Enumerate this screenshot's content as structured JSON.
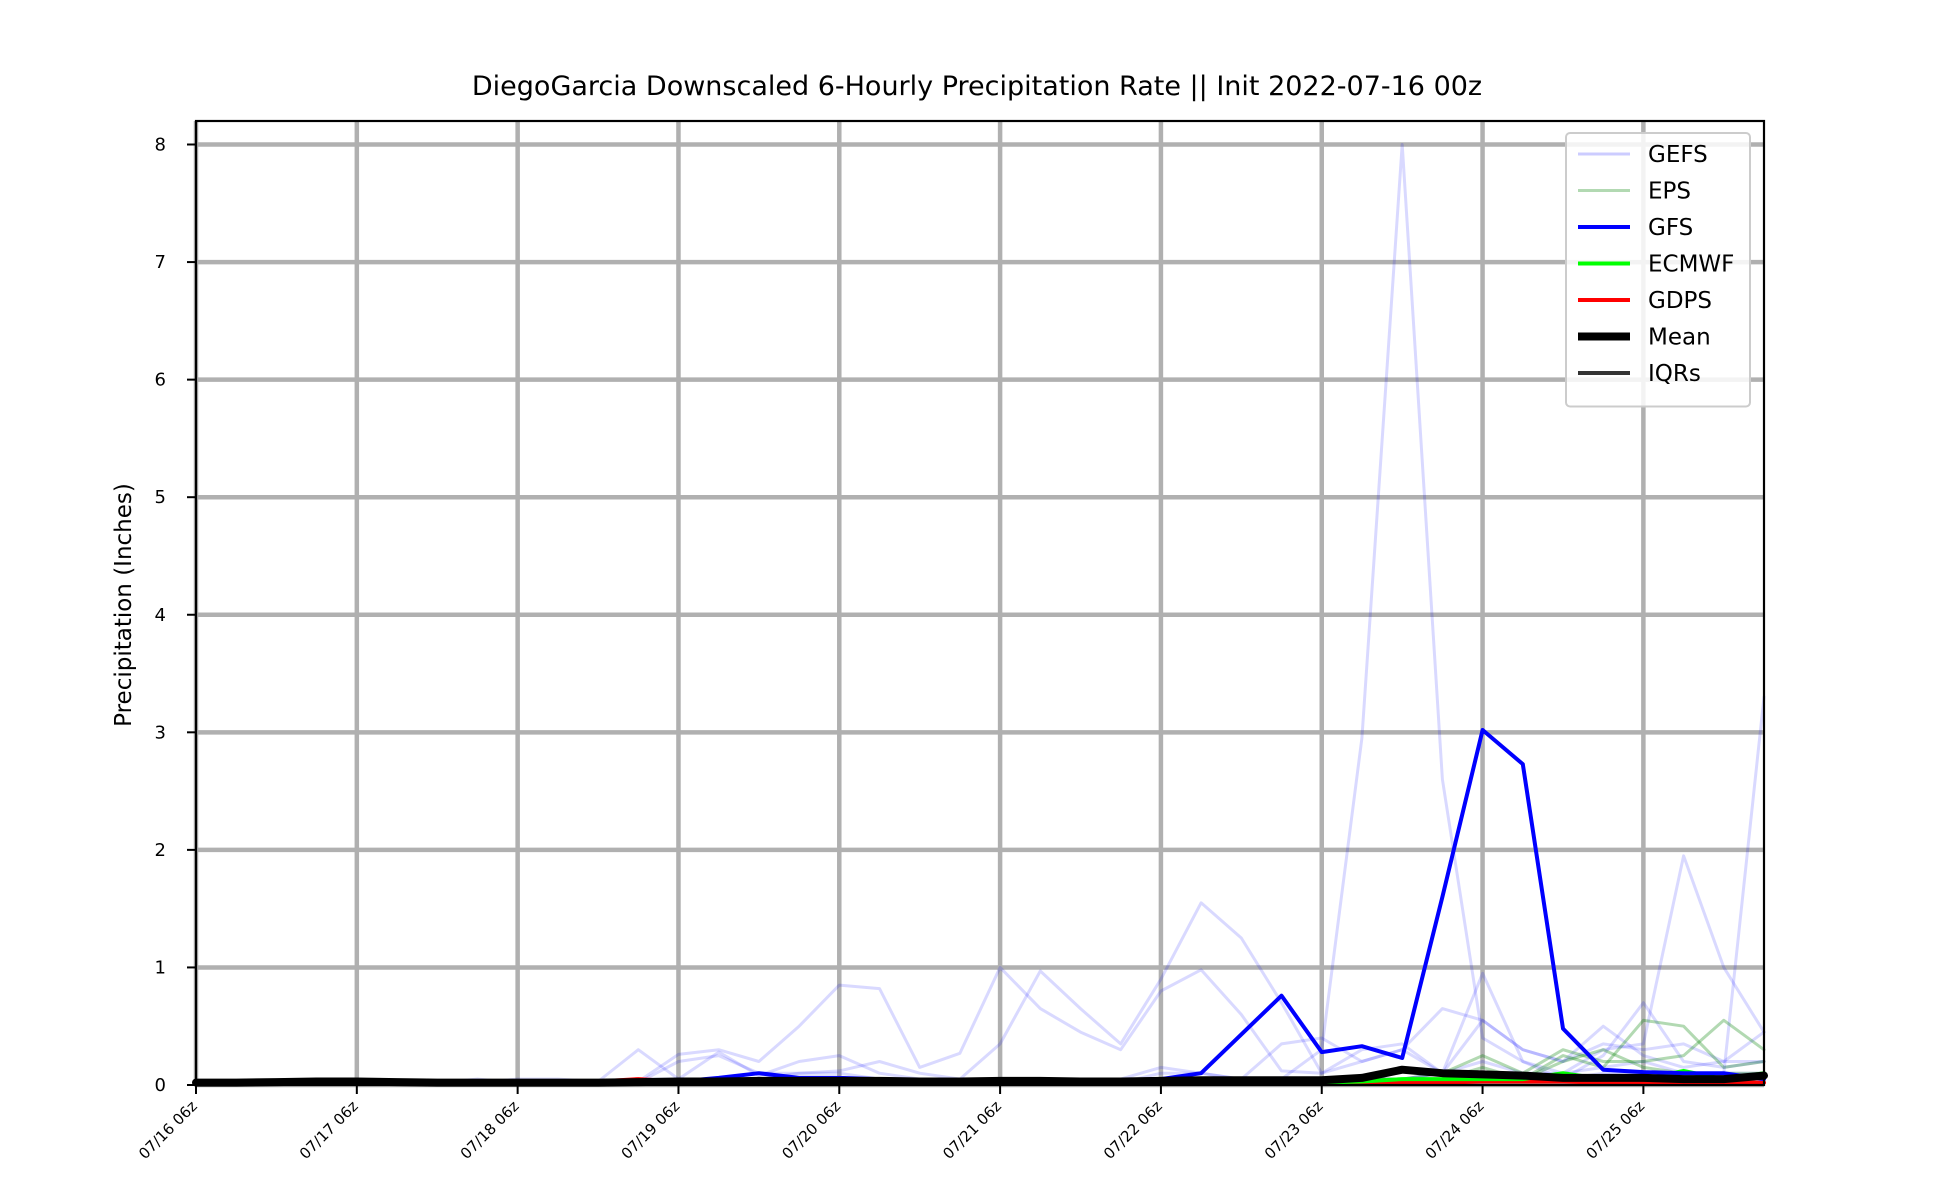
{
  "chart_data": {
    "type": "line",
    "title": "DiegoGarcia Downscaled 6-Hourly Precipitation Rate || Init 2022-07-16 00z",
    "xlabel": "",
    "ylabel": "Precipitation (Inches)",
    "x_unit": "forecast step (6-hourly from 07/16 06z)",
    "xlim": [
      0,
      39
    ],
    "ylim": [
      0,
      8.2
    ],
    "yticks": [
      0,
      1,
      2,
      3,
      4,
      5,
      6,
      7,
      8
    ],
    "xticks": [
      {
        "step": 0,
        "label": "07/16 06z"
      },
      {
        "step": 4,
        "label": "07/17 06z"
      },
      {
        "step": 8,
        "label": "07/18 06z"
      },
      {
        "step": 12,
        "label": "07/19 06z"
      },
      {
        "step": 16,
        "label": "07/20 06z"
      },
      {
        "step": 20,
        "label": "07/21 06z"
      },
      {
        "step": 24,
        "label": "07/22 06z"
      },
      {
        "step": 28,
        "label": "07/23 06z"
      },
      {
        "step": 32,
        "label": "07/24 06z"
      },
      {
        "step": 36,
        "label": "07/25 06z"
      }
    ],
    "grid": true,
    "legend_position": "top-right",
    "legend": [
      {
        "name": "GEFS",
        "color": "#0000ff",
        "opacity": 0.15,
        "width": 3
      },
      {
        "name": "EPS",
        "color": "#008000",
        "opacity": 0.3,
        "width": 3
      },
      {
        "name": "GFS",
        "color": "#0000ff",
        "opacity": 1,
        "width": 4
      },
      {
        "name": "ECMWF",
        "color": "#00ff00",
        "opacity": 1,
        "width": 4
      },
      {
        "name": "GDPS",
        "color": "#ff0000",
        "opacity": 1,
        "width": 4
      },
      {
        "name": "Mean",
        "color": "#000000",
        "opacity": 1,
        "width": 8
      },
      {
        "name": "IQRs",
        "color": "#333333",
        "opacity": 1,
        "width": 4
      }
    ],
    "gefs_members": [
      [
        0.02,
        0.02,
        0.02,
        0.03,
        0.02,
        0.02,
        0.02,
        0.02,
        0.02,
        0.03,
        0.02,
        0.03,
        0.26,
        0.3,
        0.2,
        0.5,
        0.85,
        0.82,
        0.15,
        0.27,
        1.0,
        0.65,
        0.45,
        0.3,
        0.8,
        0.98,
        0.6,
        0.12,
        0.1,
        0.3,
        0.35,
        0.1,
        0.95,
        0.2,
        0.05,
        0.25,
        0.7,
        0.2,
        0.15,
        0.2
      ],
      [
        0.02,
        0.03,
        0.02,
        0.02,
        0.03,
        0.02,
        0.03,
        0.02,
        0.05,
        0.05,
        0.03,
        0.3,
        0.05,
        0.28,
        0.08,
        0.2,
        0.25,
        0.1,
        0.05,
        0.05,
        0.35,
        0.97,
        0.65,
        0.35,
        0.9,
        1.55,
        1.25,
        0.7,
        0.1,
        0.2,
        0.3,
        0.1,
        0.55,
        0.3,
        0.2,
        0.35,
        0.3,
        0.35,
        0.2,
        0.45
      ],
      [
        0.02,
        0.02,
        0.03,
        0.02,
        0.02,
        0.02,
        0.02,
        0.05,
        0.02,
        0.02,
        0.02,
        0.02,
        0.2,
        0.25,
        0.1,
        0.1,
        0.12,
        0.2,
        0.1,
        0.05,
        0.05,
        0.05,
        0.05,
        0.02,
        0.1,
        0.1,
        0.05,
        0.05,
        0.3,
        2.95,
        8.0,
        2.6,
        0.4,
        0.2,
        0.1,
        0.15,
        0.2,
        0.1,
        0.1,
        0.1
      ],
      [
        0.02,
        0.02,
        0.02,
        0.02,
        0.03,
        0.02,
        0.02,
        0.02,
        0.03,
        0.02,
        0.02,
        0.05,
        0.05,
        0.05,
        0.05,
        0.1,
        0.1,
        0.05,
        0.05,
        0.05,
        0.05,
        0.05,
        0.05,
        0.05,
        0.15,
        0.1,
        0.05,
        0.35,
        0.4,
        0.2,
        0.3,
        0.65,
        0.55,
        0.3,
        0.2,
        0.5,
        0.25,
        0.15,
        0.2,
        0.2
      ],
      [
        0.02,
        0.02,
        0.02,
        0.02,
        0.02,
        0.02,
        0.02,
        0.02,
        0.02,
        0.02,
        0.02,
        0.02,
        0.05,
        0.05,
        0.05,
        0.05,
        0.05,
        0.05,
        0.05,
        0.05,
        0.05,
        0.05,
        0.05,
        0.05,
        0.05,
        0.05,
        0.05,
        0.05,
        0.05,
        0.05,
        0.05,
        0.1,
        0.2,
        0.1,
        0.1,
        0.3,
        0.35,
        1.95,
        1.0,
        0.45
      ],
      [
        0.02,
        0.02,
        0.02,
        0.02,
        0.02,
        0.02,
        0.02,
        0.02,
        0.02,
        0.02,
        0.02,
        0.02,
        0.05,
        0.05,
        0.05,
        0.05,
        0.05,
        0.05,
        0.05,
        0.05,
        0.05,
        0.05,
        0.05,
        0.05,
        0.05,
        0.05,
        0.05,
        0.05,
        0.05,
        0.05,
        0.05,
        0.1,
        0.1,
        0.1,
        0.05,
        0.1,
        0.1,
        0.1,
        0.1,
        3.3
      ]
    ],
    "eps_members": [
      [
        0.02,
        0.02,
        0.02,
        0.02,
        0.02,
        0.02,
        0.02,
        0.02,
        0.02,
        0.02,
        0.02,
        0.02,
        0.02,
        0.02,
        0.02,
        0.02,
        0.02,
        0.02,
        0.02,
        0.02,
        0.02,
        0.02,
        0.02,
        0.02,
        0.02,
        0.02,
        0.02,
        0.02,
        0.03,
        0.05,
        0.05,
        0.05,
        0.1,
        0.05,
        0.25,
        0.15,
        0.55,
        0.5,
        0.15,
        0.2
      ],
      [
        0.02,
        0.02,
        0.02,
        0.02,
        0.02,
        0.02,
        0.02,
        0.02,
        0.02,
        0.02,
        0.02,
        0.02,
        0.02,
        0.02,
        0.02,
        0.02,
        0.02,
        0.02,
        0.02,
        0.02,
        0.02,
        0.02,
        0.02,
        0.02,
        0.02,
        0.02,
        0.02,
        0.02,
        0.03,
        0.05,
        0.05,
        0.1,
        0.25,
        0.1,
        0.3,
        0.2,
        0.2,
        0.25,
        0.55,
        0.3
      ],
      [
        0.02,
        0.02,
        0.02,
        0.02,
        0.02,
        0.02,
        0.02,
        0.02,
        0.02,
        0.02,
        0.02,
        0.02,
        0.02,
        0.02,
        0.02,
        0.02,
        0.02,
        0.02,
        0.02,
        0.02,
        0.02,
        0.02,
        0.02,
        0.02,
        0.02,
        0.02,
        0.02,
        0.02,
        0.03,
        0.03,
        0.05,
        0.05,
        0.15,
        0.05,
        0.2,
        0.3,
        0.15,
        0.1,
        0.1,
        0.1
      ]
    ],
    "series": [
      {
        "name": "GFS",
        "values": [
          0.02,
          0.02,
          0.03,
          0.02,
          0.02,
          0.02,
          0.02,
          0.02,
          0.02,
          0.02,
          0.02,
          0.02,
          0.03,
          0.06,
          0.1,
          0.06,
          0.06,
          0.05,
          0.03,
          0.02,
          0.03,
          0.03,
          0.02,
          0.02,
          0.05,
          0.1,
          0.43,
          0.76,
          0.28,
          0.33,
          0.23,
          1.6,
          3.02,
          2.73,
          0.48,
          0.13,
          0.11,
          0.1,
          0.1,
          0.05
        ]
      },
      {
        "name": "ECMWF",
        "values": [
          0.02,
          0.02,
          0.02,
          0.02,
          0.02,
          0.02,
          0.02,
          0.02,
          0.02,
          0.02,
          0.02,
          0.02,
          0.02,
          0.02,
          0.02,
          0.02,
          0.02,
          0.02,
          0.02,
          0.02,
          0.02,
          0.02,
          0.02,
          0.02,
          0.02,
          0.02,
          0.02,
          0.02,
          0.02,
          0.03,
          0.05,
          0.05,
          0.05,
          0.05,
          0.1,
          0.05,
          0.05,
          0.12,
          0.05,
          0.1
        ]
      },
      {
        "name": "GDPS",
        "values": [
          0.02,
          0.02,
          0.02,
          0.02,
          0.02,
          0.02,
          0.02,
          0.02,
          0.02,
          0.02,
          0.03,
          0.05,
          0.03,
          0.03,
          0.03,
          0.04,
          0.06,
          0.03,
          0.02,
          0.02,
          0.02,
          0.02,
          0.02,
          0.02,
          0.02,
          0.02,
          0.02,
          0.02,
          0.02,
          0.02,
          0.02,
          0.02,
          0.03,
          0.03,
          0.03,
          0.02,
          0.02,
          0.02,
          0.02,
          0.02
        ]
      },
      {
        "name": "Mean",
        "values": [
          0.02,
          0.02,
          0.025,
          0.03,
          0.03,
          0.025,
          0.02,
          0.02,
          0.02,
          0.02,
          0.02,
          0.025,
          0.03,
          0.03,
          0.035,
          0.035,
          0.035,
          0.035,
          0.03,
          0.03,
          0.035,
          0.035,
          0.03,
          0.03,
          0.035,
          0.04,
          0.04,
          0.04,
          0.04,
          0.06,
          0.13,
          0.1,
          0.09,
          0.08,
          0.06,
          0.06,
          0.06,
          0.05,
          0.05,
          0.08
        ]
      }
    ]
  }
}
